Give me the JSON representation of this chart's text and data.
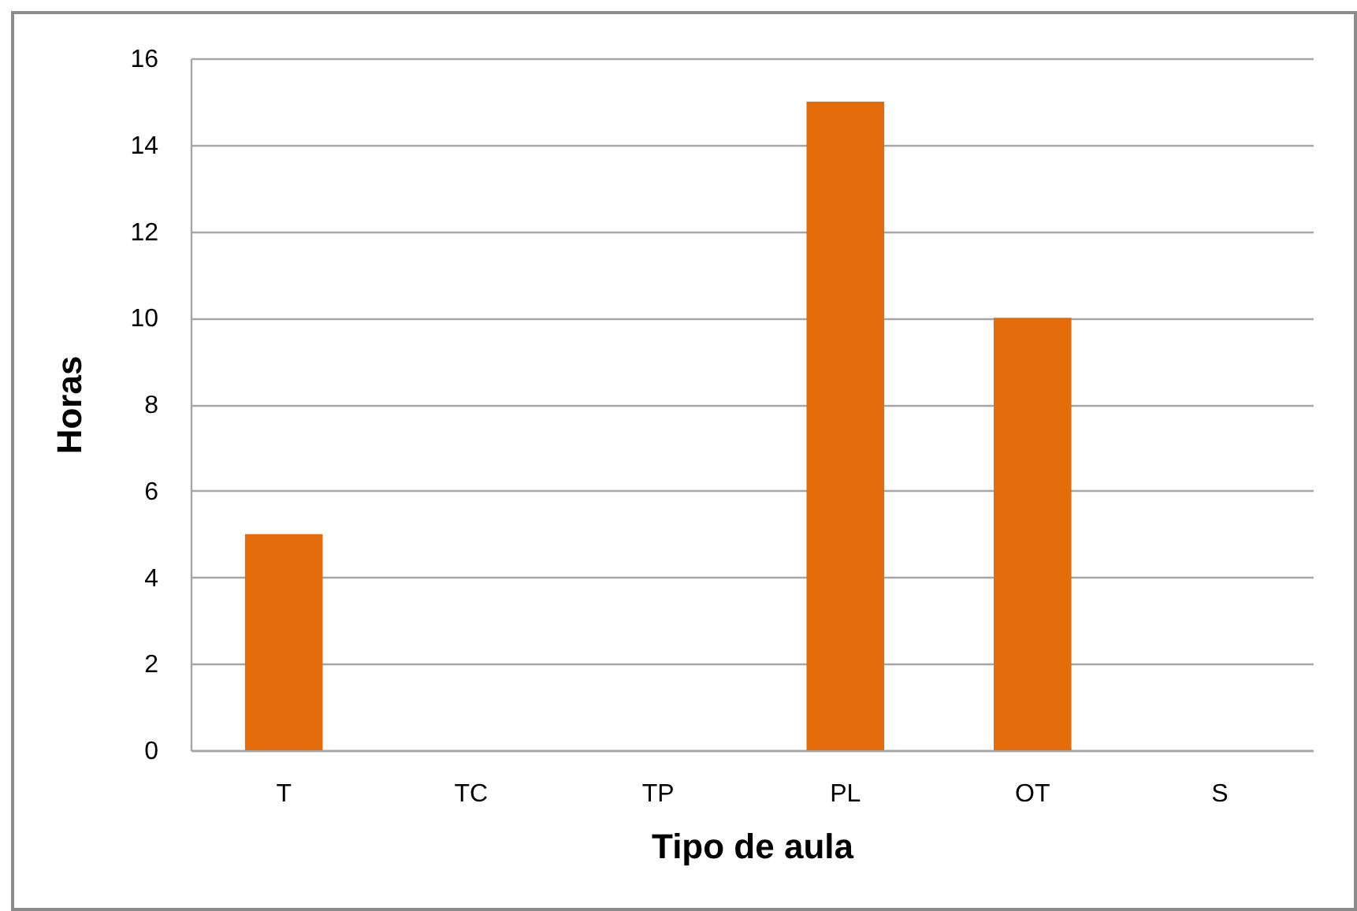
{
  "chart_data": {
    "type": "bar",
    "xlabel": "Tipo de aula",
    "ylabel": "Horas",
    "categories": [
      "T",
      "TC",
      "TP",
      "PL",
      "OT",
      "S"
    ],
    "values": [
      5,
      0,
      0,
      15,
      10,
      0
    ],
    "color": "#e46c0a",
    "ylim": [
      0,
      16
    ],
    "yticks": [
      0,
      2,
      4,
      6,
      8,
      10,
      12,
      14,
      16
    ],
    "grid": "y"
  }
}
